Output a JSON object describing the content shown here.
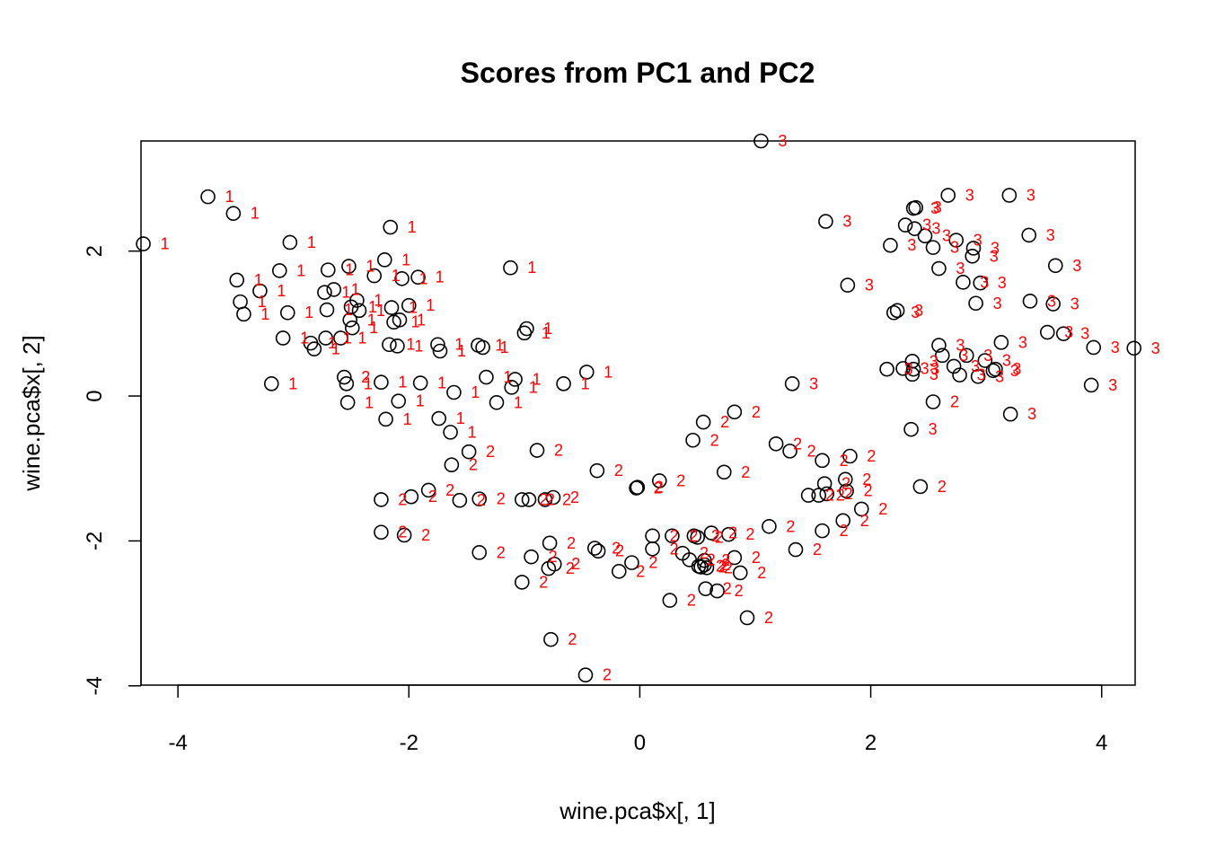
{
  "colors": {
    "point": "#000000",
    "label": "#ff0000"
  },
  "chart_data": {
    "type": "scatter",
    "title": "Scores from PC1 and PC2",
    "xlabel": "wine.pca$x[, 1]",
    "ylabel": "wine.pca$x[, 2]",
    "xlim": [
      -4.32,
      4.29
    ],
    "ylim": [
      -3.99,
      3.52
    ],
    "xticks": [
      -4,
      -2,
      0,
      2,
      4
    ],
    "yticks": [
      -4,
      -2,
      0,
      2
    ],
    "xtick_labels": [
      "-4",
      "-2",
      "0",
      "2",
      "4"
    ],
    "ytick_labels": [
      "-4",
      "-2",
      "0",
      "2"
    ],
    "marker": "open-circle",
    "point_labels_from": "class",
    "points": [
      {
        "x": -4.3,
        "y": 2.1,
        "class": "1"
      },
      {
        "x": -3.74,
        "y": 2.75,
        "class": "1"
      },
      {
        "x": -3.52,
        "y": 2.52,
        "class": "1"
      },
      {
        "x": -3.49,
        "y": 1.6,
        "class": "1"
      },
      {
        "x": -3.46,
        "y": 1.3,
        "class": "1"
      },
      {
        "x": -3.43,
        "y": 1.13,
        "class": "1"
      },
      {
        "x": -3.29,
        "y": 1.45,
        "class": "1"
      },
      {
        "x": -3.19,
        "y": 0.17,
        "class": "1"
      },
      {
        "x": -3.12,
        "y": 1.73,
        "class": "1"
      },
      {
        "x": -3.09,
        "y": 0.8,
        "class": "1"
      },
      {
        "x": -3.05,
        "y": 1.15,
        "class": "1"
      },
      {
        "x": -3.03,
        "y": 2.12,
        "class": "1"
      },
      {
        "x": -2.85,
        "y": 0.73,
        "class": "1"
      },
      {
        "x": -2.82,
        "y": 0.65,
        "class": "1"
      },
      {
        "x": -2.73,
        "y": 1.43,
        "class": "1"
      },
      {
        "x": -2.72,
        "y": 0.8,
        "class": "1"
      },
      {
        "x": -2.71,
        "y": 1.19,
        "class": "1"
      },
      {
        "x": -2.7,
        "y": 1.74,
        "class": "1"
      },
      {
        "x": -2.65,
        "y": 1.47,
        "class": "1"
      },
      {
        "x": -2.56,
        "y": 0.26,
        "class": "2"
      },
      {
        "x": -2.54,
        "y": 0.17,
        "class": "1"
      },
      {
        "x": -2.53,
        "y": -0.09,
        "class": "1"
      },
      {
        "x": -2.52,
        "y": 1.79,
        "class": "1"
      },
      {
        "x": -2.51,
        "y": 1.05,
        "class": "1"
      },
      {
        "x": -2.5,
        "y": 1.23,
        "class": "1"
      },
      {
        "x": -2.49,
        "y": 0.94,
        "class": "1"
      },
      {
        "x": -2.45,
        "y": 1.32,
        "class": "1"
      },
      {
        "x": -2.43,
        "y": 1.18,
        "class": "1"
      },
      {
        "x": -2.59,
        "y": 0.8,
        "class": "1"
      },
      {
        "x": -2.3,
        "y": 1.66,
        "class": "1"
      },
      {
        "x": -2.24,
        "y": 0.19,
        "class": "1"
      },
      {
        "x": -2.24,
        "y": -1.43,
        "class": "2"
      },
      {
        "x": -2.24,
        "y": -1.88,
        "class": "2"
      },
      {
        "x": -2.21,
        "y": 1.88,
        "class": "1"
      },
      {
        "x": -2.2,
        "y": -0.32,
        "class": "1"
      },
      {
        "x": -2.17,
        "y": 0.71,
        "class": "1"
      },
      {
        "x": -2.16,
        "y": 2.33,
        "class": "1"
      },
      {
        "x": -2.15,
        "y": 1.22,
        "class": "1"
      },
      {
        "x": -2.13,
        "y": 1.02,
        "class": "1"
      },
      {
        "x": -2.1,
        "y": 0.69,
        "class": "1"
      },
      {
        "x": -2.09,
        "y": -0.07,
        "class": "1"
      },
      {
        "x": -2.08,
        "y": 1.05,
        "class": "1"
      },
      {
        "x": -2.06,
        "y": 1.62,
        "class": "1"
      },
      {
        "x": -2.04,
        "y": -1.92,
        "class": "2"
      },
      {
        "x": -2.0,
        "y": 1.25,
        "class": "1"
      },
      {
        "x": -1.98,
        "y": -1.39,
        "class": "2"
      },
      {
        "x": -1.92,
        "y": 1.64,
        "class": "1"
      },
      {
        "x": -1.9,
        "y": 0.18,
        "class": "1"
      },
      {
        "x": -1.83,
        "y": -1.3,
        "class": "2"
      },
      {
        "x": -1.75,
        "y": 0.71,
        "class": "1"
      },
      {
        "x": -1.74,
        "y": -0.31,
        "class": "1"
      },
      {
        "x": -1.73,
        "y": 0.62,
        "class": "1"
      },
      {
        "x": -1.64,
        "y": -0.5,
        "class": "1"
      },
      {
        "x": -1.63,
        "y": -0.95,
        "class": "2"
      },
      {
        "x": -1.61,
        "y": 0.05,
        "class": "1"
      },
      {
        "x": -1.56,
        "y": -1.44,
        "class": "2"
      },
      {
        "x": -1.48,
        "y": -0.77,
        "class": "2"
      },
      {
        "x": -1.4,
        "y": 0.7,
        "class": "1"
      },
      {
        "x": -1.39,
        "y": -1.42,
        "class": "2"
      },
      {
        "x": -1.39,
        "y": -2.16,
        "class": "2"
      },
      {
        "x": -1.36,
        "y": 0.67,
        "class": "1"
      },
      {
        "x": -1.33,
        "y": 0.26,
        "class": "1"
      },
      {
        "x": -1.24,
        "y": -0.09,
        "class": "1"
      },
      {
        "x": -1.12,
        "y": 1.77,
        "class": "1"
      },
      {
        "x": -1.11,
        "y": 0.12,
        "class": "1"
      },
      {
        "x": -1.08,
        "y": 0.23,
        "class": "1"
      },
      {
        "x": -1.02,
        "y": -1.43,
        "class": "2"
      },
      {
        "x": -1.02,
        "y": -2.57,
        "class": "2"
      },
      {
        "x": -1.0,
        "y": 0.87,
        "class": "1"
      },
      {
        "x": -0.98,
        "y": 0.93,
        "class": "1"
      },
      {
        "x": -0.96,
        "y": -1.43,
        "class": "2"
      },
      {
        "x": -0.94,
        "y": -2.22,
        "class": "2"
      },
      {
        "x": -0.89,
        "y": -0.75,
        "class": "2"
      },
      {
        "x": -0.82,
        "y": -1.43,
        "class": "2"
      },
      {
        "x": -0.79,
        "y": -2.38,
        "class": "2"
      },
      {
        "x": -0.78,
        "y": -2.03,
        "class": "2"
      },
      {
        "x": -0.77,
        "y": -3.36,
        "class": "2"
      },
      {
        "x": -0.75,
        "y": -1.4,
        "class": "2"
      },
      {
        "x": -0.74,
        "y": -2.32,
        "class": "2"
      },
      {
        "x": -0.66,
        "y": 0.17,
        "class": "1"
      },
      {
        "x": -0.46,
        "y": 0.33,
        "class": "1"
      },
      {
        "x": -0.47,
        "y": -3.85,
        "class": "2"
      },
      {
        "x": -0.39,
        "y": -2.1,
        "class": "2"
      },
      {
        "x": -0.37,
        "y": -1.03,
        "class": "2"
      },
      {
        "x": -0.36,
        "y": -2.14,
        "class": "2"
      },
      {
        "x": -0.18,
        "y": -2.42,
        "class": "2"
      },
      {
        "x": -0.07,
        "y": -2.3,
        "class": "2"
      },
      {
        "x": -0.03,
        "y": -1.27,
        "class": "2"
      },
      {
        "x": -0.02,
        "y": -1.26,
        "class": "2"
      },
      {
        "x": 0.11,
        "y": -1.93,
        "class": "2"
      },
      {
        "x": 0.11,
        "y": -2.11,
        "class": "2"
      },
      {
        "x": 0.17,
        "y": -1.17,
        "class": "2"
      },
      {
        "x": 0.26,
        "y": -2.82,
        "class": "2"
      },
      {
        "x": 0.28,
        "y": -1.93,
        "class": "2"
      },
      {
        "x": 0.37,
        "y": -2.17,
        "class": "2"
      },
      {
        "x": 0.43,
        "y": -2.26,
        "class": "2"
      },
      {
        "x": 0.46,
        "y": -0.61,
        "class": "2"
      },
      {
        "x": 0.47,
        "y": -1.93,
        "class": "2"
      },
      {
        "x": 0.5,
        "y": -1.95,
        "class": "2"
      },
      {
        "x": 0.51,
        "y": -2.35,
        "class": "2"
      },
      {
        "x": 0.53,
        "y": -2.36,
        "class": "2"
      },
      {
        "x": 0.55,
        "y": -0.36,
        "class": "2"
      },
      {
        "x": 0.56,
        "y": -2.27,
        "class": "2"
      },
      {
        "x": 0.56,
        "y": -2.33,
        "class": "2"
      },
      {
        "x": 0.57,
        "y": -2.66,
        "class": "2"
      },
      {
        "x": 0.58,
        "y": -2.37,
        "class": "2"
      },
      {
        "x": 0.62,
        "y": -1.89,
        "class": "2"
      },
      {
        "x": 0.67,
        "y": -2.69,
        "class": "2"
      },
      {
        "x": 0.73,
        "y": -1.05,
        "class": "2"
      },
      {
        "x": 0.77,
        "y": -1.91,
        "class": "2"
      },
      {
        "x": 0.82,
        "y": -0.22,
        "class": "2"
      },
      {
        "x": 0.82,
        "y": -2.23,
        "class": "2"
      },
      {
        "x": 0.87,
        "y": -2.44,
        "class": "2"
      },
      {
        "x": 0.93,
        "y": -3.06,
        "class": "2"
      },
      {
        "x": 1.05,
        "y": 3.52,
        "class": "3"
      },
      {
        "x": 1.12,
        "y": -1.8,
        "class": "2"
      },
      {
        "x": 1.18,
        "y": -0.66,
        "class": "2"
      },
      {
        "x": 1.3,
        "y": -0.76,
        "class": "2"
      },
      {
        "x": 1.32,
        "y": 0.17,
        "class": "3"
      },
      {
        "x": 1.35,
        "y": -2.12,
        "class": "2"
      },
      {
        "x": 1.46,
        "y": -1.37,
        "class": "2"
      },
      {
        "x": 1.55,
        "y": -1.37,
        "class": "2"
      },
      {
        "x": 1.58,
        "y": -0.89,
        "class": "2"
      },
      {
        "x": 1.58,
        "y": -1.86,
        "class": "2"
      },
      {
        "x": 1.6,
        "y": -1.21,
        "class": "2"
      },
      {
        "x": 1.61,
        "y": 2.41,
        "class": "3"
      },
      {
        "x": 1.62,
        "y": -1.35,
        "class": "2"
      },
      {
        "x": 1.76,
        "y": -1.72,
        "class": "2"
      },
      {
        "x": 1.78,
        "y": -1.15,
        "class": "2"
      },
      {
        "x": 1.79,
        "y": -1.31,
        "class": "2"
      },
      {
        "x": 1.8,
        "y": 1.53,
        "class": "3"
      },
      {
        "x": 1.82,
        "y": -0.83,
        "class": "2"
      },
      {
        "x": 1.92,
        "y": -1.56,
        "class": "2"
      },
      {
        "x": 2.14,
        "y": 0.37,
        "class": "3"
      },
      {
        "x": 2.17,
        "y": 2.08,
        "class": "3"
      },
      {
        "x": 2.2,
        "y": 1.15,
        "class": "3"
      },
      {
        "x": 2.23,
        "y": 1.18,
        "class": "3"
      },
      {
        "x": 2.28,
        "y": 0.38,
        "class": "3"
      },
      {
        "x": 2.3,
        "y": 2.36,
        "class": "3"
      },
      {
        "x": 2.35,
        "y": -0.46,
        "class": "3"
      },
      {
        "x": 2.36,
        "y": 0.3,
        "class": "3"
      },
      {
        "x": 2.36,
        "y": 0.48,
        "class": "3"
      },
      {
        "x": 2.37,
        "y": 0.37,
        "class": "3"
      },
      {
        "x": 2.37,
        "y": 2.59,
        "class": "3"
      },
      {
        "x": 2.38,
        "y": 2.31,
        "class": "3"
      },
      {
        "x": 2.39,
        "y": 2.6,
        "class": "3"
      },
      {
        "x": 2.43,
        "y": -1.25,
        "class": "2"
      },
      {
        "x": 2.47,
        "y": 2.21,
        "class": "3"
      },
      {
        "x": 2.54,
        "y": -0.08,
        "class": "2"
      },
      {
        "x": 2.54,
        "y": 2.05,
        "class": "3"
      },
      {
        "x": 2.59,
        "y": 0.7,
        "class": "3"
      },
      {
        "x": 2.59,
        "y": 1.76,
        "class": "3"
      },
      {
        "x": 2.62,
        "y": 0.56,
        "class": "3"
      },
      {
        "x": 2.67,
        "y": 2.77,
        "class": "3"
      },
      {
        "x": 2.72,
        "y": 0.41,
        "class": "3"
      },
      {
        "x": 2.74,
        "y": 2.15,
        "class": "3"
      },
      {
        "x": 2.77,
        "y": 0.29,
        "class": "3"
      },
      {
        "x": 2.8,
        "y": 1.57,
        "class": "3"
      },
      {
        "x": 2.83,
        "y": 0.56,
        "class": "3"
      },
      {
        "x": 2.88,
        "y": 1.93,
        "class": "3"
      },
      {
        "x": 2.89,
        "y": 2.04,
        "class": "3"
      },
      {
        "x": 2.91,
        "y": 1.28,
        "class": "3"
      },
      {
        "x": 2.93,
        "y": 0.27,
        "class": "3"
      },
      {
        "x": 2.95,
        "y": 1.56,
        "class": "3"
      },
      {
        "x": 2.99,
        "y": 0.49,
        "class": "3"
      },
      {
        "x": 3.06,
        "y": 0.35,
        "class": "3"
      },
      {
        "x": 3.08,
        "y": 0.37,
        "class": "3"
      },
      {
        "x": 3.13,
        "y": 0.74,
        "class": "3"
      },
      {
        "x": 3.2,
        "y": 2.77,
        "class": "3"
      },
      {
        "x": 3.21,
        "y": -0.25,
        "class": "3"
      },
      {
        "x": 3.37,
        "y": 2.22,
        "class": "3"
      },
      {
        "x": 3.38,
        "y": 1.31,
        "class": "3"
      },
      {
        "x": 3.53,
        "y": 0.88,
        "class": "3"
      },
      {
        "x": 3.58,
        "y": 1.27,
        "class": "3"
      },
      {
        "x": 3.6,
        "y": 1.8,
        "class": "3"
      },
      {
        "x": 3.67,
        "y": 0.86,
        "class": "3"
      },
      {
        "x": 3.91,
        "y": 0.15,
        "class": "3"
      },
      {
        "x": 3.93,
        "y": 0.67,
        "class": "3"
      },
      {
        "x": 4.28,
        "y": 0.66,
        "class": "3"
      }
    ]
  }
}
